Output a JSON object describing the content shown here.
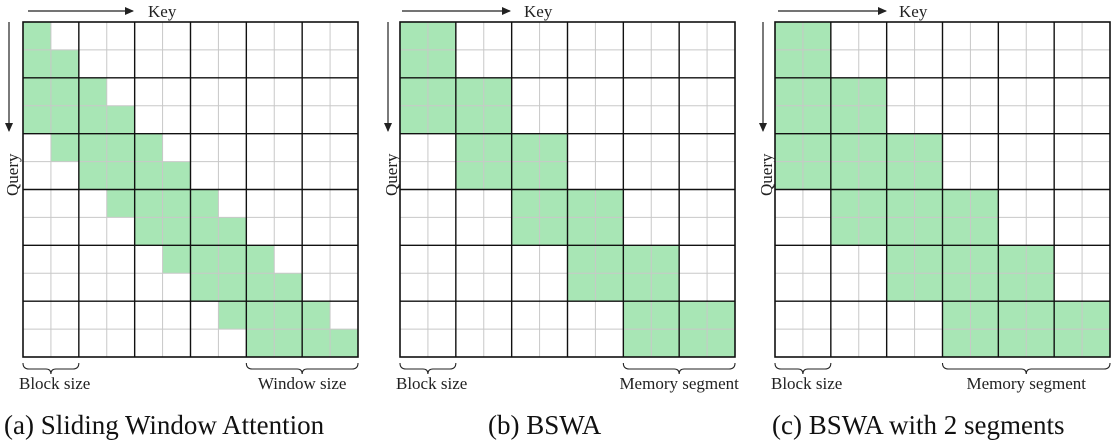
{
  "figure": {
    "key_label": "Key",
    "query_label": "Query",
    "green": "#A8E6B5",
    "panels": [
      {
        "id": "a",
        "caption": "(a) Sliding Window Attention",
        "left_brace_label": "Block size",
        "right_brace_label": "Window size",
        "n": 12,
        "block": 2,
        "mask": "sliding_window",
        "window": 4,
        "segments": 0
      },
      {
        "id": "b",
        "caption": "(b) BSWA",
        "left_brace_label": "Block size",
        "right_brace_label": "Memory segment",
        "n": 12,
        "block": 2,
        "mask": "bswa",
        "segments": 1
      },
      {
        "id": "c",
        "caption": "(c) BSWA with 2 segments",
        "left_brace_label": "Block size",
        "right_brace_label": "Memory segment",
        "n": 12,
        "block": 2,
        "mask": "bswa",
        "segments": 2
      }
    ]
  }
}
